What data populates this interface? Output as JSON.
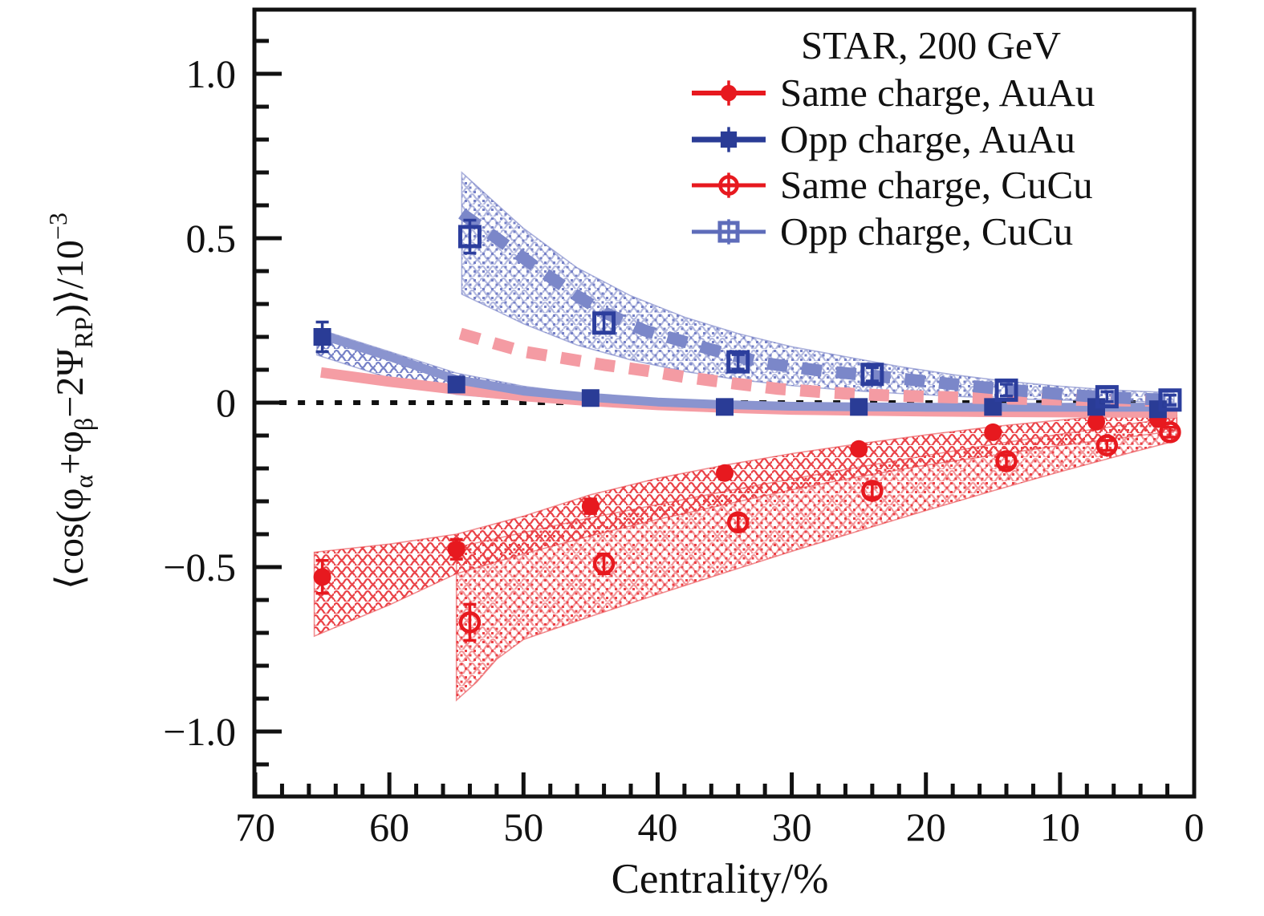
{
  "figure": {
    "background": "#ffffff",
    "frame_color": "#111111"
  },
  "legend": {
    "title": "STAR, 200 GeV",
    "items": [
      {
        "label": "Same charge, AuAu",
        "marker": "filled-circle",
        "color": "#e7191f",
        "line_width": 6
      },
      {
        "label": "Opp charge, AuAu",
        "marker": "filled-square",
        "color": "#2a3c96",
        "line_width": 7
      },
      {
        "label": "Same charge, CuCu",
        "marker": "open-circle",
        "color": "#e7191f",
        "line_width": 5
      },
      {
        "label": "Opp charge, CuCu",
        "marker": "open-square",
        "color": "#5e6cba",
        "line_width": 5
      }
    ]
  },
  "axes": {
    "x": {
      "label": "Centrality/%",
      "min": 0,
      "max": 70,
      "reversed": true,
      "major_ticks": [
        70,
        60,
        50,
        40,
        30,
        20,
        10,
        0
      ],
      "major_tick_labels": [
        "70",
        "60",
        "50",
        "40",
        "30",
        "20",
        "10",
        "0"
      ],
      "minor_step": 2
    },
    "y": {
      "label": "⟨cos(φα+φβ−2ΨRP)⟩/10⁻³",
      "label_parts": [
        {
          "t": "⟨cos(φ"
        },
        {
          "t": "α",
          "sub": true
        },
        {
          "t": "+φ"
        },
        {
          "t": "β",
          "sub": true
        },
        {
          "t": "−2Ψ"
        },
        {
          "t": "RP",
          "sub": true
        },
        {
          "t": ")⟩/10"
        },
        {
          "t": "−3",
          "sup": true
        }
      ],
      "min": -1.2,
      "max": 1.2,
      "major_ticks": [
        1.0,
        0.5,
        0,
        -0.5,
        -1.0
      ],
      "major_tick_labels": [
        "1.0",
        "0.5",
        "0",
        "−0.5",
        "−1.0"
      ],
      "minor_step": 0.1
    }
  },
  "chart_data": {
    "type": "scatter",
    "title": "STAR, 200 GeV",
    "xlabel": "Centrality/%",
    "ylabel": "⟨cos(φα+φβ−2ΨRP)⟩/10⁻³",
    "xlim": [
      70,
      0
    ],
    "ylim": [
      -1.2,
      1.2
    ],
    "x_unit": "centrality percent",
    "y_unit": "10^-3",
    "grid": false,
    "legend_position": "top-right",
    "zero_line": {
      "y": 0,
      "style": "dotted",
      "color": "#111111",
      "x_from": 68.2,
      "x_to": 2.2
    },
    "series": [
      {
        "name": "Same charge, AuAu",
        "marker": "filled-circle",
        "color": "#e7191f",
        "points": [
          [
            65,
            -0.53,
            0.05
          ],
          [
            55,
            -0.446,
            0.03
          ],
          [
            45,
            -0.315,
            0.022
          ],
          [
            35,
            -0.214,
            0.018
          ],
          [
            25,
            -0.141,
            0.015
          ],
          [
            15,
            -0.09,
            0.015
          ],
          [
            7.3,
            -0.058,
            0.012
          ],
          [
            2.7,
            -0.05,
            0.012
          ]
        ]
      },
      {
        "name": "Opp charge, AuAu",
        "marker": "filled-square",
        "color": "#2a3c96",
        "points": [
          [
            65,
            0.2,
            0.045
          ],
          [
            55,
            0.055,
            0.022
          ],
          [
            45,
            0.014,
            0.015
          ],
          [
            35,
            -0.013,
            0.012
          ],
          [
            25,
            -0.013,
            0.012
          ],
          [
            15,
            -0.013,
            0.012
          ],
          [
            7.3,
            -0.013,
            0.012
          ],
          [
            2.7,
            -0.02,
            0.012
          ]
        ]
      },
      {
        "name": "Same charge, CuCu",
        "marker": "open-circle",
        "color": "#e7191f",
        "points": [
          [
            54,
            -0.668,
            0.055
          ],
          [
            44,
            -0.49,
            0.03
          ],
          [
            34,
            -0.364,
            0.022
          ],
          [
            24,
            -0.268,
            0.02
          ],
          [
            14,
            -0.178,
            0.018
          ],
          [
            6.5,
            -0.13,
            0.015
          ],
          [
            1.8,
            -0.09,
            0.015
          ]
        ]
      },
      {
        "name": "Opp charge, CuCu",
        "marker": "open-square",
        "color": "#2c3e9d",
        "points": [
          [
            54,
            0.505,
            0.05
          ],
          [
            44,
            0.242,
            0.03
          ],
          [
            34,
            0.124,
            0.022
          ],
          [
            24,
            0.086,
            0.02
          ],
          [
            14,
            0.038,
            0.018
          ],
          [
            6.5,
            0.018,
            0.015
          ],
          [
            1.8,
            0.008,
            0.015
          ]
        ]
      }
    ],
    "model_curves": [
      {
        "name": "model same charge AuAu",
        "style": "solid",
        "color": "#f59da4",
        "width": 13,
        "points": [
          [
            65.1,
            0.092
          ],
          [
            60,
            0.064
          ],
          [
            55,
            0.04
          ],
          [
            50,
            0.02
          ],
          [
            45,
            0.005
          ],
          [
            40,
            -0.007
          ],
          [
            35,
            -0.015
          ],
          [
            30,
            -0.021
          ],
          [
            25,
            -0.024
          ],
          [
            20,
            -0.026
          ],
          [
            15,
            -0.028
          ],
          [
            10,
            -0.029
          ],
          [
            5,
            -0.03
          ],
          [
            1.3,
            -0.031
          ]
        ]
      },
      {
        "name": "model opp charge AuAu",
        "style": "solid",
        "color": "#8a94cf",
        "width": 11,
        "points": [
          [
            65.4,
            0.21
          ],
          [
            60,
            0.14
          ],
          [
            55,
            0.07
          ],
          [
            50,
            0.035
          ],
          [
            45,
            0.016
          ],
          [
            40,
            0.002
          ],
          [
            35,
            -0.006
          ],
          [
            30,
            -0.011
          ],
          [
            25,
            -0.013
          ],
          [
            20,
            -0.014
          ],
          [
            15,
            -0.014
          ],
          [
            10,
            -0.014
          ],
          [
            5,
            -0.014
          ],
          [
            1.3,
            -0.013
          ]
        ]
      },
      {
        "name": "model same charge CuCu",
        "style": "dashed",
        "color": "#f49ba3",
        "width": 15,
        "points": [
          [
            54.7,
            0.21
          ],
          [
            50,
            0.155
          ],
          [
            47,
            0.135
          ],
          [
            44,
            0.115
          ],
          [
            41,
            0.098
          ],
          [
            38,
            0.078
          ],
          [
            35,
            0.062
          ],
          [
            31,
            0.042
          ],
          [
            27,
            0.03
          ],
          [
            23,
            0.022
          ],
          [
            18,
            0.016
          ],
          [
            12,
            0.011
          ],
          [
            6,
            0.007
          ],
          [
            1.5,
            0.005
          ]
        ]
      },
      {
        "name": "model opp charge CuCu",
        "style": "dashed",
        "color": "#7b87c9",
        "width": 15,
        "points": [
          [
            54.6,
            0.575
          ],
          [
            52,
            0.5
          ],
          [
            49,
            0.41
          ],
          [
            46,
            0.325
          ],
          [
            44,
            0.275
          ],
          [
            41,
            0.22
          ],
          [
            38,
            0.185
          ],
          [
            35,
            0.15
          ],
          [
            32,
            0.12
          ],
          [
            28,
            0.098
          ],
          [
            24,
            0.082
          ],
          [
            20,
            0.065
          ],
          [
            16,
            0.048
          ],
          [
            12,
            0.033
          ],
          [
            8,
            0.02
          ],
          [
            4,
            0.012
          ],
          [
            1.5,
            0.008
          ]
        ]
      }
    ],
    "model_bands": [
      {
        "name": "band opp charge AuAu",
        "texture": "wavy",
        "color": "#7681c7",
        "upper": [
          [
            65.4,
            0.225
          ],
          [
            60,
            0.155
          ],
          [
            55,
            0.09
          ],
          [
            50,
            0.05
          ],
          [
            45,
            0.024
          ],
          [
            42,
            0.012
          ]
        ],
        "lower": [
          [
            42,
            0.0
          ],
          [
            45,
            0.002
          ],
          [
            50,
            0.008
          ],
          [
            55,
            0.025
          ],
          [
            60,
            0.075
          ],
          [
            65.4,
            0.145
          ]
        ]
      },
      {
        "name": "band opp charge CuCu",
        "texture": "dots+wavy",
        "color": "#7681c7",
        "upper": [
          [
            54.6,
            0.7
          ],
          [
            50,
            0.53
          ],
          [
            46,
            0.41
          ],
          [
            42,
            0.325
          ],
          [
            38,
            0.26
          ],
          [
            34,
            0.21
          ],
          [
            30,
            0.17
          ],
          [
            26,
            0.14
          ],
          [
            22,
            0.11
          ],
          [
            18,
            0.085
          ],
          [
            14,
            0.065
          ],
          [
            10,
            0.05
          ],
          [
            6,
            0.038
          ],
          [
            1.5,
            0.03
          ]
        ],
        "lower": [
          [
            1.5,
            0.002
          ],
          [
            6,
            0.004
          ],
          [
            10,
            0.008
          ],
          [
            14,
            0.012
          ],
          [
            18,
            0.02
          ],
          [
            22,
            0.028
          ],
          [
            26,
            0.038
          ],
          [
            30,
            0.052
          ],
          [
            34,
            0.07
          ],
          [
            38,
            0.095
          ],
          [
            42,
            0.13
          ],
          [
            46,
            0.175
          ],
          [
            50,
            0.24
          ],
          [
            54.6,
            0.33
          ]
        ]
      },
      {
        "name": "band same charge AuAu",
        "texture": "wavy",
        "color": "#ea4348",
        "upper": [
          [
            65.6,
            -0.455
          ],
          [
            60,
            -0.43
          ],
          [
            55,
            -0.4
          ],
          [
            50,
            -0.345
          ],
          [
            45,
            -0.28
          ],
          [
            40,
            -0.23
          ],
          [
            35,
            -0.19
          ],
          [
            30,
            -0.155
          ],
          [
            25,
            -0.125
          ],
          [
            20,
            -0.098
          ],
          [
            15,
            -0.073
          ],
          [
            10,
            -0.053
          ],
          [
            5,
            -0.035
          ],
          [
            1.3,
            -0.022
          ]
        ],
        "lower": [
          [
            1.3,
            -0.085
          ],
          [
            5,
            -0.105
          ],
          [
            10,
            -0.13
          ],
          [
            15,
            -0.16
          ],
          [
            20,
            -0.19
          ],
          [
            25,
            -0.225
          ],
          [
            30,
            -0.265
          ],
          [
            35,
            -0.31
          ],
          [
            40,
            -0.355
          ],
          [
            45,
            -0.405
          ],
          [
            50,
            -0.46
          ],
          [
            55,
            -0.52
          ],
          [
            60,
            -0.615
          ],
          [
            65.6,
            -0.71
          ]
        ]
      },
      {
        "name": "band same charge CuCu",
        "texture": "dots+wavy",
        "color": "#ea4348",
        "upper": [
          [
            55,
            -0.44
          ],
          [
            50,
            -0.395
          ],
          [
            45,
            -0.35
          ],
          [
            40,
            -0.31
          ],
          [
            35,
            -0.27
          ],
          [
            30,
            -0.232
          ],
          [
            25,
            -0.196
          ],
          [
            20,
            -0.161
          ],
          [
            15,
            -0.127
          ],
          [
            10,
            -0.096
          ],
          [
            5,
            -0.066
          ],
          [
            1.3,
            -0.046
          ]
        ],
        "lower": [
          [
            1.3,
            -0.115
          ],
          [
            5,
            -0.155
          ],
          [
            10,
            -0.21
          ],
          [
            15,
            -0.268
          ],
          [
            20,
            -0.328
          ],
          [
            25,
            -0.39
          ],
          [
            30,
            -0.452
          ],
          [
            35,
            -0.517
          ],
          [
            40,
            -0.583
          ],
          [
            45,
            -0.65
          ],
          [
            50,
            -0.72
          ],
          [
            52,
            -0.78
          ],
          [
            53.5,
            -0.85
          ],
          [
            55,
            -0.905
          ]
        ]
      }
    ]
  }
}
